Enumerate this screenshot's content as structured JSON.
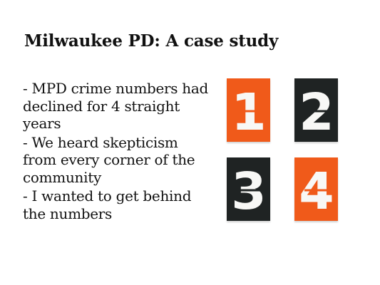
{
  "slide": {
    "title": "Milwaukee PD: A case study",
    "bullets": [
      "- MPD crime numbers had declined for 4 straight years",
      "- We heard skepticism from every corner of the community",
      "- I wanted to get behind the numbers"
    ]
  },
  "image": {
    "tiles": [
      {
        "digit": "1",
        "color": "#f05a1a"
      },
      {
        "digit": "2",
        "color": "#1f2323"
      },
      {
        "digit": "3",
        "color": "#1f2323"
      },
      {
        "digit": "4",
        "color": "#f05a1a"
      }
    ]
  }
}
